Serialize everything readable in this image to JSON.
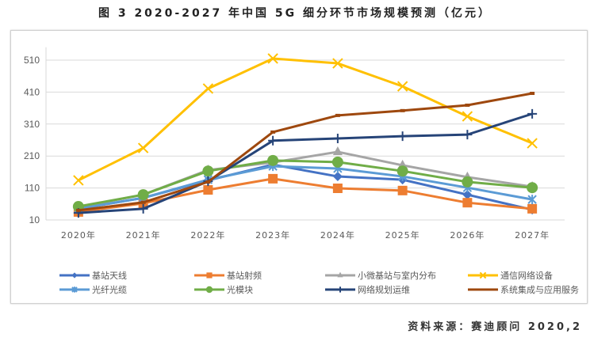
{
  "title": "图 3 2020-2027 年中国 5G 细分环节市场规模预测（亿元）",
  "source": "资料来源：赛迪顾问 2020,2",
  "chart_data": {
    "type": "line",
    "title": "图 3 2020-2027 年中国 5G 细分环节市场规模预测（亿元）",
    "xlabel": "",
    "ylabel": "",
    "categories": [
      "2020年",
      "2021年",
      "2022年",
      "2023年",
      "2024年",
      "2025年",
      "2026年",
      "2027年"
    ],
    "yticks": [
      10,
      110,
      210,
      310,
      410,
      510
    ],
    "ylim": [
      10,
      560
    ],
    "grid": true,
    "legend_position": "bottom",
    "series": [
      {
        "name": "基站天线",
        "color": "#4472C4",
        "marker": "diamond",
        "values": [
          45,
          79,
          134,
          183,
          146,
          136,
          89,
          42
        ]
      },
      {
        "name": "基站射频",
        "color": "#ED7D31",
        "marker": "square",
        "values": [
          35,
          62,
          104,
          139,
          109,
          102,
          64,
          45
        ]
      },
      {
        "name": "小微基站与室内分布",
        "color": "#A5A5A5",
        "marker": "triangle",
        "values": [
          50,
          89,
          166,
          190,
          223,
          181,
          144,
          114
        ]
      },
      {
        "name": "通信网络设备",
        "color": "#FFC000",
        "marker": "x",
        "values": [
          134,
          235,
          421,
          515,
          500,
          428,
          334,
          250
        ]
      },
      {
        "name": "光纤光缆",
        "color": "#5B9BD5",
        "marker": "asterisk",
        "values": [
          45,
          79,
          136,
          178,
          171,
          146,
          111,
          74
        ]
      },
      {
        "name": "光模块",
        "color": "#70AD47",
        "marker": "circle",
        "values": [
          52,
          89,
          163,
          196,
          191,
          163,
          129,
          111
        ]
      },
      {
        "name": "网络规划运维",
        "color": "#264478",
        "marker": "plus",
        "values": [
          32,
          45,
          131,
          258,
          265,
          272,
          277,
          342
        ]
      },
      {
        "name": "系统集成与应用服务",
        "color": "#9E480E",
        "marker": "dash",
        "values": [
          40,
          65,
          129,
          285,
          337,
          352,
          369,
          406
        ]
      }
    ]
  }
}
